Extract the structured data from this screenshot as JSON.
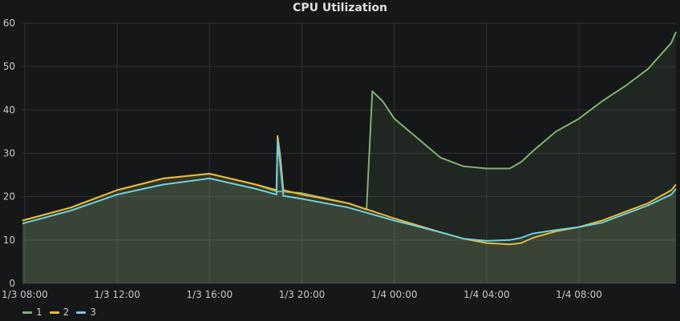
{
  "chart_data": {
    "type": "line",
    "title": "CPU Utilization",
    "xlabel": "",
    "ylabel": "",
    "x_ticks": [
      "1/3 08:00",
      "1/3 12:00",
      "1/3 16:00",
      "1/3 20:00",
      "1/4 00:00",
      "1/4 04:00",
      "1/4 08:00"
    ],
    "y_ticks": [
      0,
      10,
      20,
      30,
      40,
      50,
      60
    ],
    "ylim": [
      0,
      60
    ],
    "xlim_hours": [
      7.9,
      36.2
    ],
    "x_unit": "hours since 1/3 00:00",
    "grid": true,
    "legend_position": "bottom-left",
    "fill_area": true,
    "series": [
      {
        "name": "1",
        "color": "#7eb26d",
        "x": [
          7.9,
          10,
          12,
          14,
          16,
          18,
          18.9,
          19.1,
          20,
          22,
          22.8,
          23.05,
          23.5,
          24,
          25,
          26,
          27,
          28,
          29,
          29.5,
          30,
          31,
          32,
          33,
          34,
          35,
          36,
          36.2
        ],
        "values": [
          14.5,
          17.5,
          21.5,
          24.2,
          25.3,
          22.8,
          21.2,
          21.2,
          20.8,
          18.5,
          17,
          44.3,
          42,
          38,
          33.5,
          29,
          27,
          26.5,
          26.5,
          28,
          30.5,
          35,
          38,
          42,
          45.5,
          49.5,
          55.5,
          58
        ]
      },
      {
        "name": "2",
        "color": "#eab839",
        "x": [
          7.9,
          10,
          12,
          14,
          16,
          18,
          18.9,
          18.95,
          19.05,
          19.2,
          20,
          22,
          24,
          26,
          27,
          28,
          29,
          29.5,
          30,
          31,
          32,
          33,
          34,
          35,
          36,
          36.2
        ],
        "values": [
          14.5,
          17.5,
          21.5,
          24.2,
          25.3,
          22.8,
          21.5,
          34,
          30,
          21.5,
          20.5,
          18.5,
          15,
          11.8,
          10.3,
          9.3,
          9,
          9.3,
          10.5,
          12,
          13,
          14.5,
          16.5,
          18.5,
          21.5,
          22.8
        ]
      },
      {
        "name": "3",
        "color": "#6ed0e0",
        "x": [
          7.9,
          10,
          12,
          14,
          16,
          18,
          18.9,
          18.95,
          19.05,
          19.2,
          20,
          22,
          24,
          26,
          27,
          28,
          29,
          29.5,
          30,
          31,
          32,
          33,
          34,
          35,
          36,
          36.2
        ],
        "values": [
          13.8,
          16.8,
          20.5,
          22.8,
          24.2,
          21.8,
          20.5,
          33,
          28,
          20.2,
          19.5,
          17.5,
          14.5,
          11.8,
          10.3,
          9.8,
          10,
          10.5,
          11.5,
          12.3,
          13,
          14,
          16,
          18,
          20.5,
          21.8
        ]
      }
    ]
  }
}
